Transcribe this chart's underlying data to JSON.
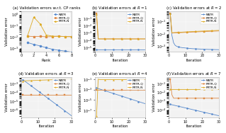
{
  "legend_labels": [
    "RATR",
    "FRTR-Q",
    "FRTR-N"
  ],
  "colors_ratr": "#5588cc",
  "colors_frtrq": "#dd8844",
  "colors_frtrn": "#ddaa22",
  "subplot_titles": [
    "(a) Validation errors w.r.t. CP ranks",
    "(b) Validation errors at $R = 1$",
    "(c) Validation errors at $R = 2$",
    "(d) Validation errors at $R = 3$",
    "(e) Validation errors at $R = 4$",
    "(f) Validation errors at $R = 7$"
  ],
  "xlabel_a": "Rank",
  "xlabel_iter": "Iteration",
  "ylabel": "Validation error",
  "panel_bg": "#f2f2f2",
  "title_fontsize": 4.0,
  "label_fontsize": 3.8,
  "tick_fontsize": 3.5,
  "legend_fontsize": 3.2,
  "lw": 0.6,
  "ms": 1.5
}
